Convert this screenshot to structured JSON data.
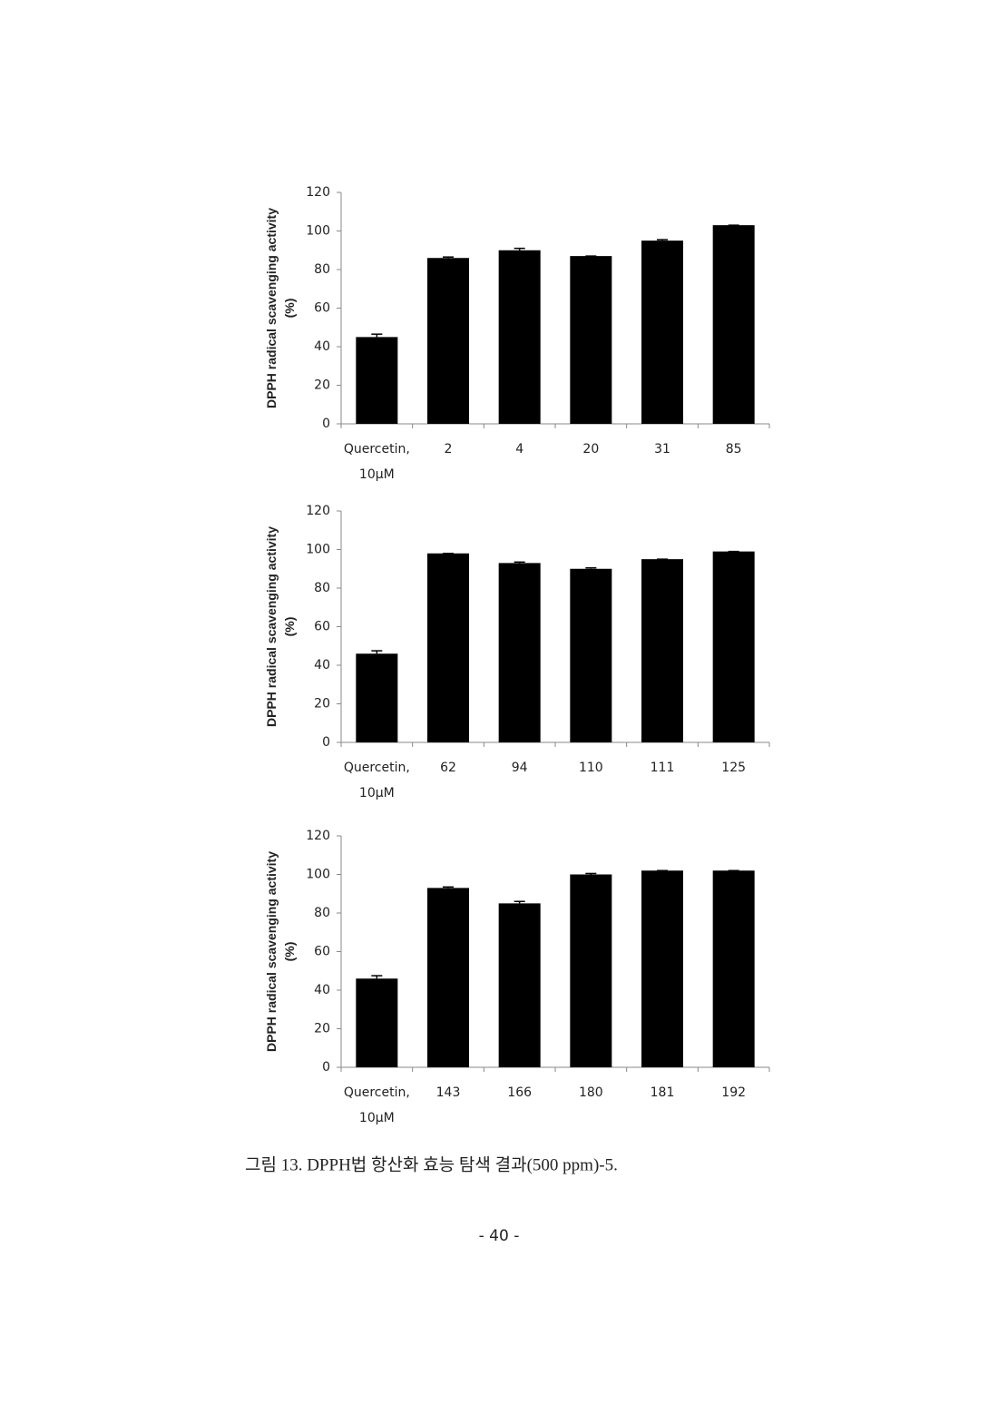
{
  "chart_data": [
    {
      "type": "bar",
      "y_label": "DPPH radical scavenging activity (%)",
      "categories": [
        "Quercetin, 10μM",
        "2",
        "4",
        "20",
        "31",
        "85"
      ],
      "values": [
        45,
        86,
        90,
        87,
        95,
        103
      ],
      "errors": [
        1.5,
        0.5,
        1,
        0,
        0.5,
        0
      ],
      "color": "#000000",
      "ylim": [
        0,
        120
      ],
      "yticks": [
        0,
        20,
        40,
        60,
        80,
        100,
        120
      ]
    },
    {
      "type": "bar",
      "y_label": "DPPH radical scavenging activity (%)",
      "categories": [
        "Quercetin, 10μM",
        "62",
        "94",
        "110",
        "111",
        "125"
      ],
      "values": [
        46,
        98,
        93,
        90,
        95,
        99
      ],
      "errors": [
        1.5,
        0,
        0.5,
        0.5,
        0,
        0
      ],
      "color": "#000000",
      "ylim": [
        0,
        120
      ],
      "yticks": [
        0,
        20,
        40,
        60,
        80,
        100,
        120
      ]
    },
    {
      "type": "bar",
      "y_label": "DPPH radical scavenging activity (%)",
      "categories": [
        "Quercetin, 10μM",
        "143",
        "166",
        "180",
        "181",
        "192"
      ],
      "values": [
        46,
        93,
        85,
        100,
        102,
        102
      ],
      "errors": [
        1.5,
        0.5,
        1,
        0.5,
        0,
        0
      ],
      "color": "#000000",
      "ylim": [
        0,
        120
      ],
      "yticks": [
        0,
        20,
        40,
        60,
        80,
        100,
        120
      ]
    }
  ],
  "caption": "그림 13. DPPH법 항산화 효능 탐색 결과(500 ppm)-5.",
  "page_number": "- 40 -"
}
